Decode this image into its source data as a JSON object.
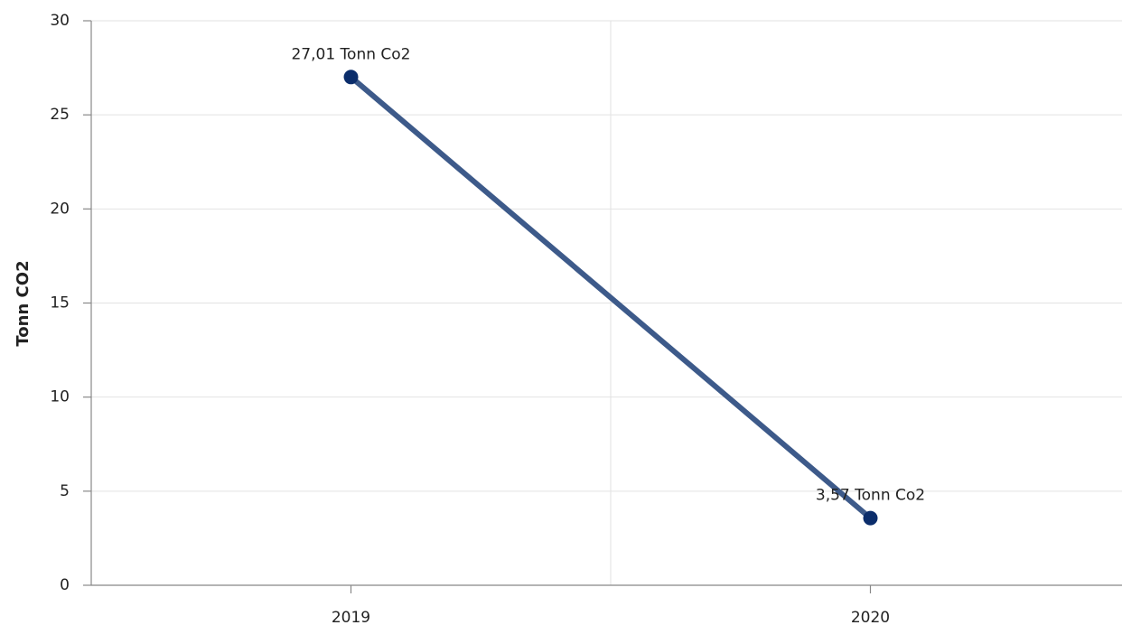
{
  "chart_data": {
    "type": "line",
    "y_axis_label": "Tonn CO2",
    "categories": [
      "2019",
      "2020"
    ],
    "series": [
      {
        "name": null,
        "color": "#3d5a8a",
        "marker_color": "#0b2d6b",
        "values": [
          27.01,
          3.57
        ],
        "value_labels": [
          "27,01 Tonn Co2",
          "3,57 Tonn Co2"
        ]
      }
    ],
    "ylim": [
      0,
      30
    ],
    "yticks": [
      0,
      5,
      10,
      15,
      20,
      25,
      30
    ],
    "grid": true
  }
}
